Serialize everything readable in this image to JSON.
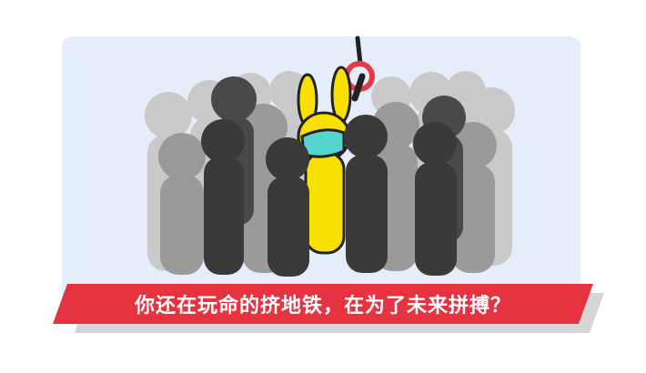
{
  "caption": "你还在玩命的挤地铁，在为了未来拼搏？",
  "colors": {
    "panel": "#e6edfa",
    "banner": "#e63340",
    "banner_shadow": "#d6d6d6",
    "ring": "#e23b47",
    "rabbit": "#f8e100",
    "mask": "#55d5cf",
    "crowd_light": "#c9c9c9",
    "crowd_mid": "#9a9a9a",
    "crowd_dark": "#3b3a3a"
  },
  "icons": [
    "hand-strap-icon",
    "rabbit-icon",
    "face-mask-icon",
    "crowd-silhouette-icon"
  ]
}
